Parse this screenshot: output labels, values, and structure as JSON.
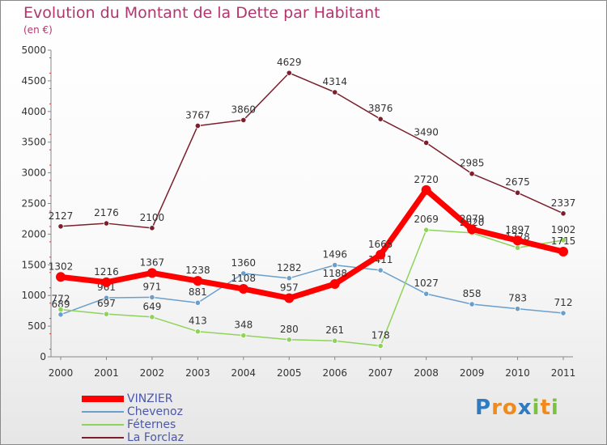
{
  "chart_data": {
    "type": "line",
    "title": "Evolution du Montant de la Dette par Habitant",
    "subtitle": "(en €)",
    "x": [
      "2000",
      "2001",
      "2002",
      "2003",
      "2004",
      "2005",
      "2006",
      "2007",
      "2008",
      "2009",
      "2010",
      "2011"
    ],
    "ylim": [
      0,
      5000
    ],
    "yticks": [
      0,
      500,
      1000,
      1500,
      2000,
      2500,
      3000,
      3500,
      4000,
      4500,
      5000
    ],
    "grid": false,
    "legend_position": "bottom-left",
    "series": [
      {
        "name": "La Forclaz",
        "color": "#7a1f2b",
        "values": [
          2127,
          2176,
          2100,
          3767,
          3860,
          4629,
          4314,
          3876,
          3490,
          2985,
          2675,
          2337
        ]
      },
      {
        "name": "Chevenoz",
        "color": "#6a9fcc",
        "values": [
          689,
          961,
          971,
          881,
          1360,
          1282,
          1496,
          1411,
          1027,
          858,
          783,
          712
        ]
      },
      {
        "name": "Féternes",
        "color": "#8fd35a",
        "values": [
          772,
          697,
          649,
          413,
          348,
          280,
          261,
          178,
          2069,
          2020,
          1778,
          1902
        ]
      },
      {
        "name": "VINZIER",
        "color": "#ff0000",
        "values": [
          1302,
          1216,
          1367,
          1238,
          1108,
          957,
          1188,
          1665,
          2720,
          2079,
          1897,
          1715
        ]
      }
    ],
    "legend_order": [
      "VINZIER",
      "Chevenoz",
      "Féternes",
      "La Forclaz"
    ]
  },
  "logo": {
    "letters": [
      "P",
      "r",
      "o",
      "x",
      "i",
      "t",
      "i"
    ],
    "colors": [
      "#2e7bc2",
      "#f08a1c",
      "#f08a1c",
      "#2e7bc2",
      "#7cc242",
      "#f08a1c",
      "#7cc242"
    ]
  }
}
